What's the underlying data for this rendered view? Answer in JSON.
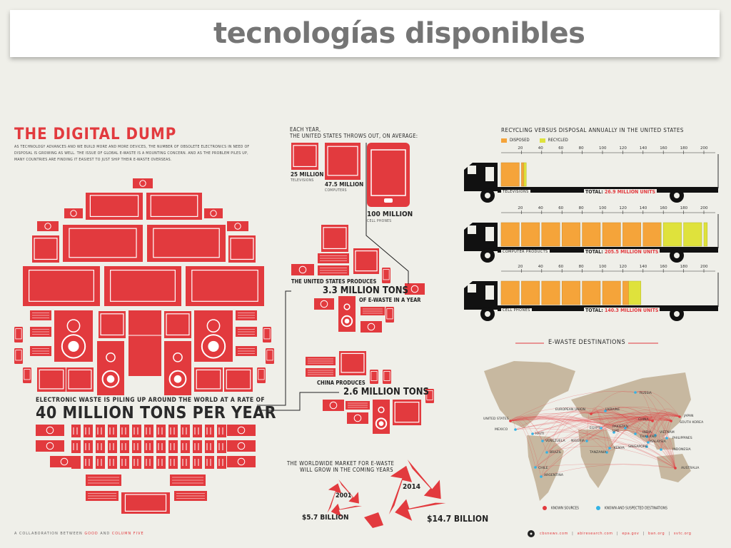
{
  "banner": {
    "title": "tecnologías disponibles"
  },
  "infographic": {
    "title": "THE DIGITAL DUMP",
    "intro": "AS TECHNOLOGY ADVANCES AND WE BUILD MORE AND MORE DEVICES, THE NUMBER OF OBSOLETE ELECTRONICS IN NEED OF DISPOSAL IS GROWING AS WELL. THE ISSUE OF GLOBAL E-WASTE IS A MOUNTING CONCERN. AND AS THE PROBLEM PILES UP, MANY COUNTRIES ARE FINDING IT EASIEST TO JUST SHIP THEIR E-WASTE OVERSEAS.",
    "pile_caption_top": "ELECTRONIC WASTE IS PILING UP AROUND THE WORLD AT A RATE OF",
    "pile_caption_main": "40 MILLION TONS PER YEAR",
    "footer_prefix": "A COLLABORATION BETWEEN",
    "footer_good": "GOOD",
    "footer_and": "AND",
    "footer_colum": "COLUMN FIVE"
  },
  "throwout": {
    "intro": "EACH YEAR,\nTHE UNITED STATES THROWS OUT, ON AVERAGE:",
    "tv_value": "25 MILLION",
    "tv_label": "TELEVISIONS",
    "pc_value": "47.5 MILLION",
    "pc_label": "COMPUTERS",
    "phone_value": "100 MILLION",
    "phone_label": "CELL PHONES"
  },
  "production": {
    "us_label": "THE UNITED STATES PRODUCES",
    "us_value": "3.3 MILLION TONS",
    "us_suffix": "OF E-WASTE IN A YEAR",
    "china_label": "CHINA PRODUCES",
    "china_value": "2.6 MILLION TONS"
  },
  "market": {
    "title_line1": "THE WORLDWIDE MARKET FOR E-WASTE",
    "title_line2": "WILL GROW IN THE COMING YEARS",
    "year_a": "2001",
    "value_a": "$5.7 BILLION",
    "year_b": "2014",
    "value_b": "$14.7 BILLION"
  },
  "recycling": {
    "title": "RECYCLING VERSUS DISPOSAL ANNUALLY IN THE UNITED STATES",
    "legend_disposed": "DISPOSED",
    "legend_recycled": "RECYCLED",
    "colors": {
      "disposed": "#f5a43a",
      "recycled": "#dfe23c",
      "accent": "#e23a3e"
    },
    "scale": [
      "20",
      "40",
      "60",
      "80",
      "100",
      "120",
      "140",
      "160",
      "180",
      "200"
    ],
    "trucks": [
      {
        "label": "TELEVISIONS",
        "total_label": "TOTAL:",
        "total_value": "26.9 MILLION UNITS",
        "disposed": 22.5,
        "recycled": 4.4
      },
      {
        "label": "COMPUTER PRODUCTS",
        "total_label": "TOTAL:",
        "total_value": "205.5 MILLION UNITS",
        "disposed": 157.3,
        "recycled": 48.2
      },
      {
        "label": "CELL PHONES",
        "total_label": "TOTAL:",
        "total_value": "140.3 MILLION UNITS",
        "disposed": 125.9,
        "recycled": 14.4
      }
    ]
  },
  "destinations": {
    "title": "E-WASTE DESTINATIONS",
    "legend_known": "KNOWN SOURCES",
    "legend_suspected": "KNOWN AND SUSPECTED DESTINATIONS",
    "labels": [
      "RUSSIA",
      "EUROPEAN UNION",
      "UKRAINE",
      "UNITED STATES",
      "MEXICO",
      "HAITI",
      "VENEZUELA",
      "BRAZIL",
      "NIGERIA",
      "EGYPT",
      "PAKISTAN",
      "INDIA",
      "CHINA",
      "JAPAN",
      "SOUTH KOREA",
      "VIETNAM",
      "THAILAND",
      "MALAYSIA",
      "SINGAPORE",
      "PHILIPPINES",
      "INDONESIA",
      "KENYA",
      "TANZANIA",
      "CHILE",
      "ARGENTINA",
      "AUSTRALIA",
      "UAE"
    ]
  },
  "sources": [
    "cbsnews.com",
    "|",
    "abiresearch.com",
    "|",
    "epa.gov",
    "|",
    "ban.org",
    "|",
    "svtc.org"
  ]
}
